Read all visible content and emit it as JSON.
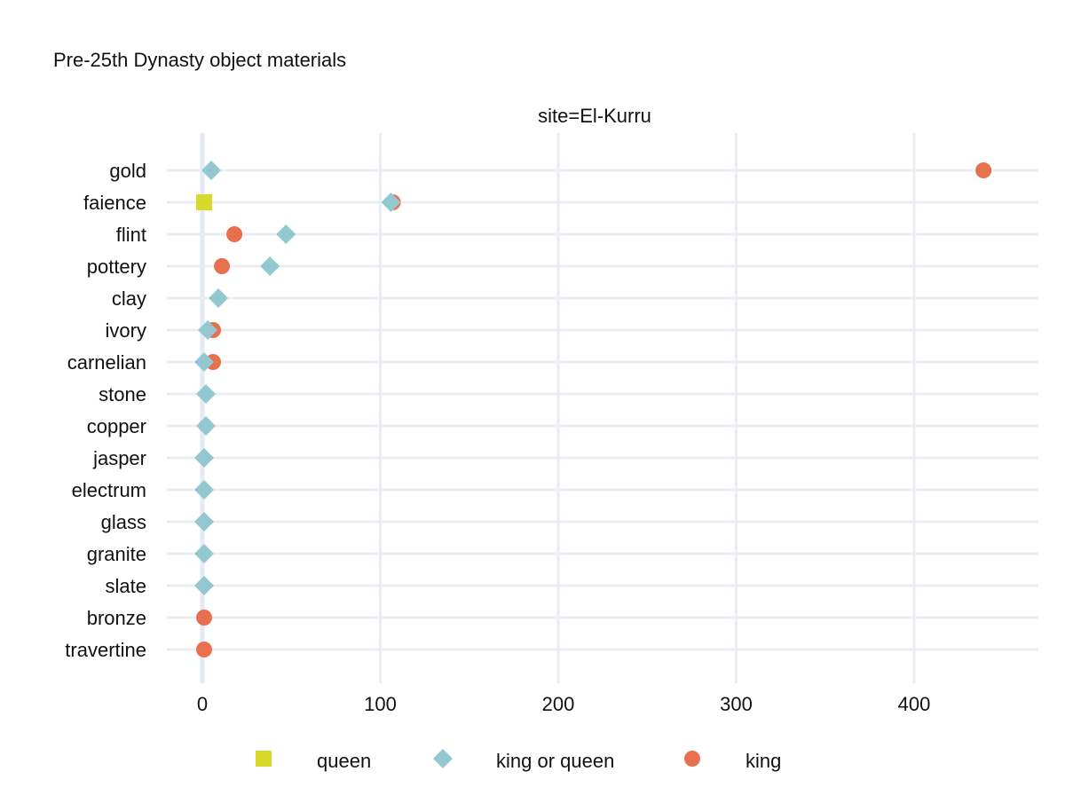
{
  "chart_data": {
    "type": "scatter",
    "title": "Pre-25th Dynasty object materials",
    "facet_label": "site=El-Kurru",
    "xlabel": "",
    "ylabel": "",
    "xlim": [
      -15,
      470
    ],
    "xticks": [
      0,
      100,
      200,
      300,
      400
    ],
    "grid": true,
    "legend_position": "bottom",
    "categories": [
      "gold",
      "faience",
      "flint",
      "pottery",
      "clay",
      "ivory",
      "carnelian",
      "stone",
      "copper",
      "jasper",
      "electrum",
      "glass",
      "granite",
      "slate",
      "bronze",
      "travertine"
    ],
    "series": [
      {
        "name": "queen",
        "marker": "square",
        "color": "#d9d92b",
        "points": [
          {
            "category": "faience",
            "value": 1
          }
        ]
      },
      {
        "name": "king or queen",
        "marker": "diamond",
        "color": "#93c8d0",
        "points": [
          {
            "category": "gold",
            "value": 5
          },
          {
            "category": "faience",
            "value": 106
          },
          {
            "category": "flint",
            "value": 47
          },
          {
            "category": "pottery",
            "value": 38
          },
          {
            "category": "clay",
            "value": 9
          },
          {
            "category": "ivory",
            "value": 3
          },
          {
            "category": "carnelian",
            "value": 1
          },
          {
            "category": "stone",
            "value": 2
          },
          {
            "category": "copper",
            "value": 2
          },
          {
            "category": "jasper",
            "value": 1
          },
          {
            "category": "electrum",
            "value": 1
          },
          {
            "category": "glass",
            "value": 1
          },
          {
            "category": "granite",
            "value": 1
          },
          {
            "category": "slate",
            "value": 1
          }
        ]
      },
      {
        "name": "king",
        "marker": "circle",
        "color": "#e8704f",
        "points": [
          {
            "category": "gold",
            "value": 439
          },
          {
            "category": "faience",
            "value": 107
          },
          {
            "category": "flint",
            "value": 18
          },
          {
            "category": "pottery",
            "value": 11
          },
          {
            "category": "ivory",
            "value": 6
          },
          {
            "category": "carnelian",
            "value": 6
          },
          {
            "category": "bronze",
            "value": 1
          },
          {
            "category": "travertine",
            "value": 1
          }
        ]
      }
    ]
  }
}
